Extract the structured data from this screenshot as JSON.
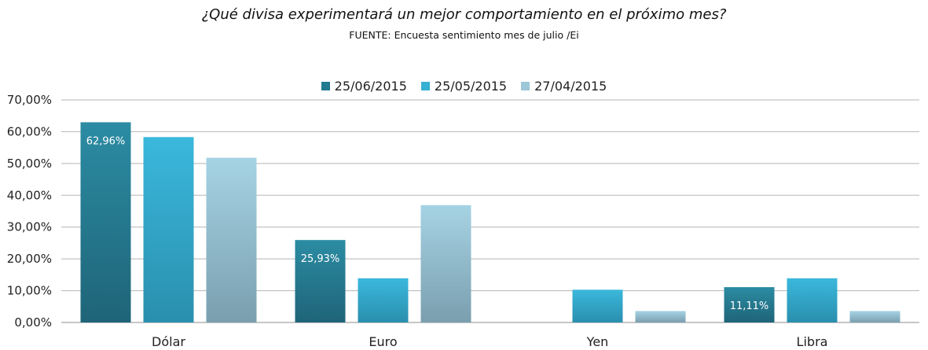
{
  "chart_data": {
    "type": "bar",
    "title": "¿Qué divisa experimentará un mejor comportamiento  en el próximo mes?",
    "subtitle": "FUENTE: Encuesta sentimiento mes de julio /Ei",
    "xlabel": "",
    "ylabel": "",
    "categories": [
      "Dólar",
      "Euro",
      "Yen",
      "Libra"
    ],
    "series": [
      {
        "name": "25/06/2015",
        "values": [
          62.96,
          25.93,
          0,
          11.11
        ],
        "data_labels": [
          "62,96%",
          "25,93%",
          "",
          "11,11%"
        ],
        "color_top": "#2b8ca3",
        "color_bottom": "#1f6478"
      },
      {
        "name": "25/05/2015",
        "values": [
          58.3,
          13.9,
          10.3,
          13.9
        ],
        "data_labels": [
          "",
          "",
          "",
          ""
        ],
        "color_top": "#3ab8dc",
        "color_bottom": "#2a8fae"
      },
      {
        "name": "27/04/2015",
        "values": [
          51.8,
          36.9,
          3.6,
          3.6
        ],
        "data_labels": [
          "",
          "",
          "",
          ""
        ],
        "color_top": "#a6d3e4",
        "color_bottom": "#7a9faf"
      }
    ],
    "ylim": [
      0,
      70
    ],
    "yticks": [
      0,
      10,
      20,
      30,
      40,
      50,
      60,
      70
    ],
    "ytick_labels": [
      "0,00%",
      "10,00%",
      "20,00%",
      "30,00%",
      "40,00%",
      "50,00%",
      "60,00%",
      "70,00%"
    ],
    "grid": true,
    "legend_position": "top"
  }
}
